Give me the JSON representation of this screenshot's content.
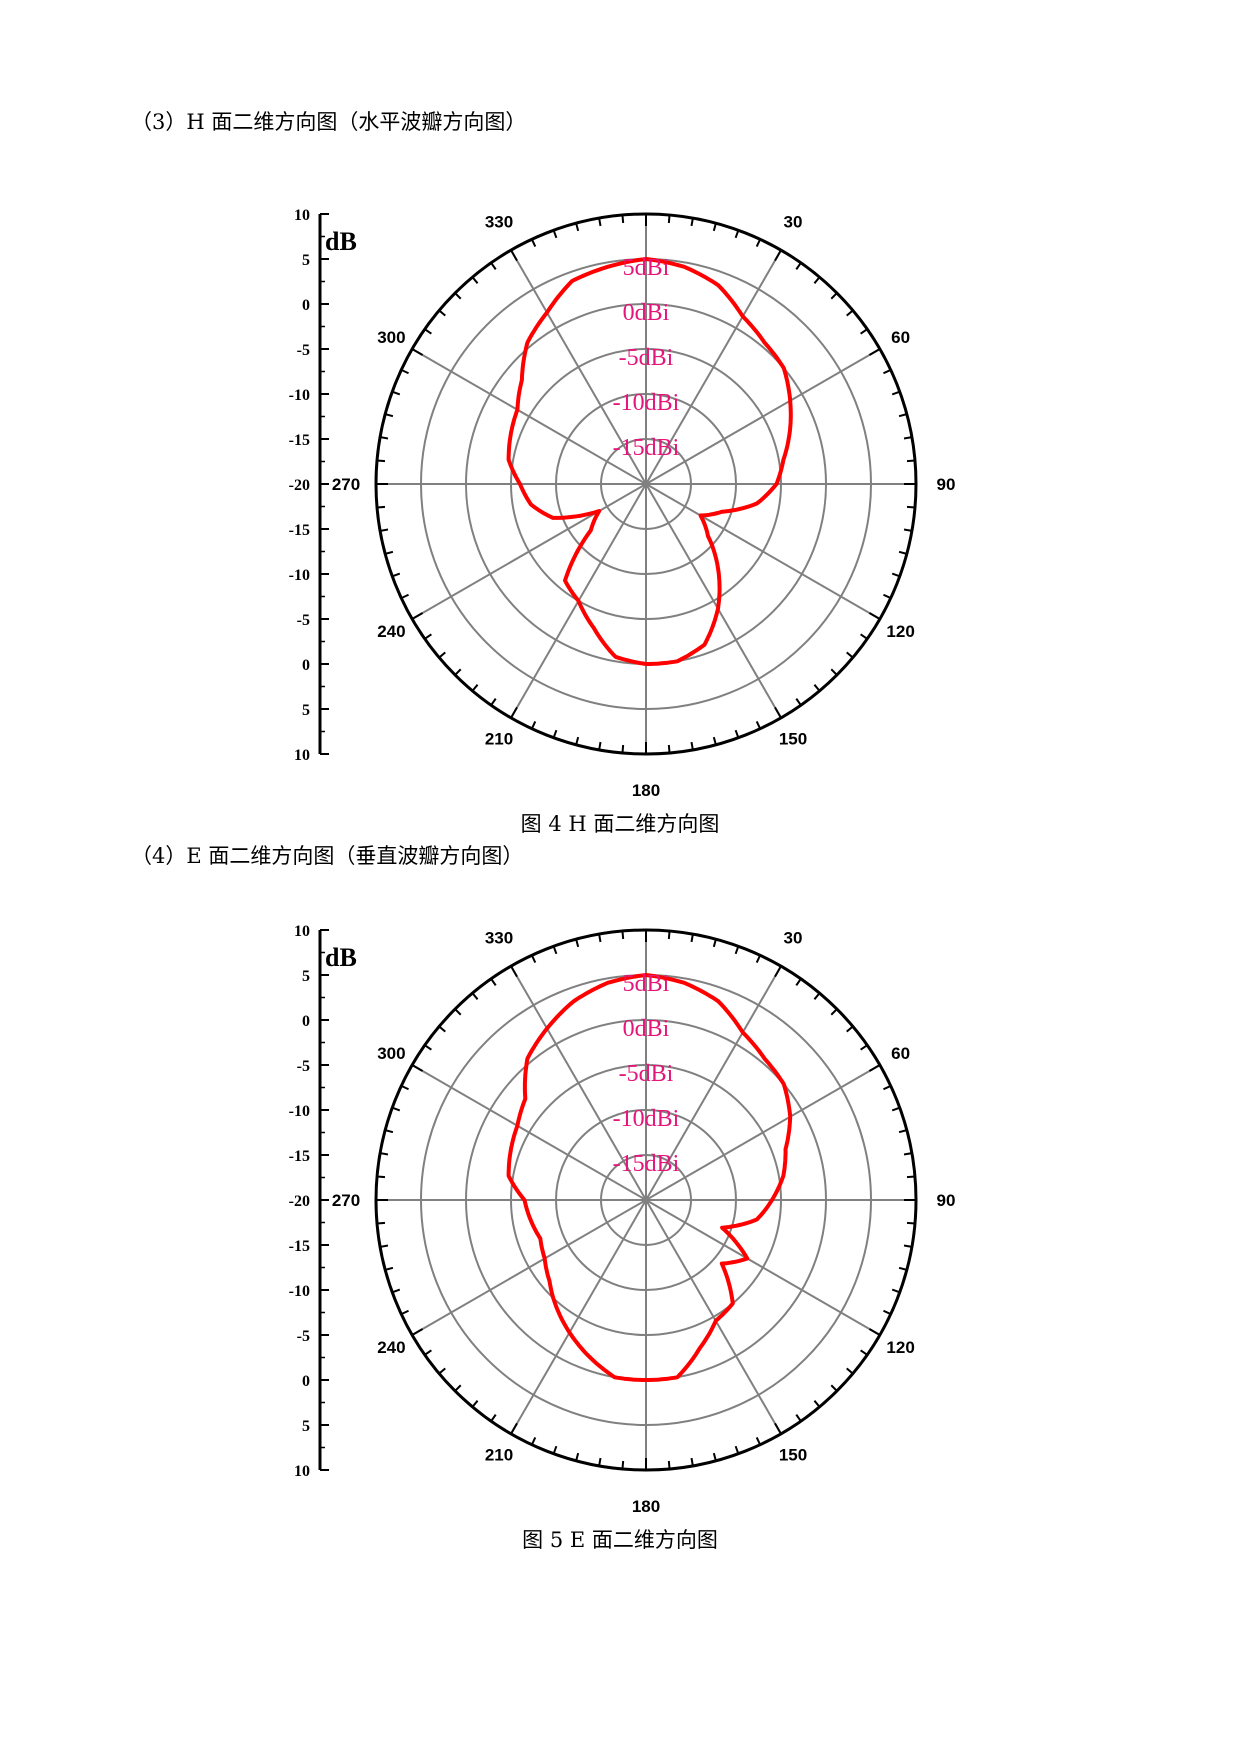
{
  "sections": [
    {
      "heading": "（3）H 面二维方向图（水平波瓣方向图）",
      "caption": "图 4 H 面二维方向图",
      "chart_data": {
        "type": "polar",
        "unit_label": "dB",
        "scale_tick_labels": [
          "10",
          "5",
          "0",
          "-5",
          "-10",
          "-15",
          "-20",
          "-15",
          "-10",
          "-5",
          "0",
          "5",
          "10"
        ],
        "radial_range_dbi": [
          -20,
          10
        ],
        "ring_labels": [
          "5dBi",
          "0dBi",
          "-5dBi",
          "-10dBi",
          "-15dBi"
        ],
        "angle_labels": [
          "330",
          "30",
          "300",
          "60",
          "270",
          "90",
          "240",
          "120",
          "210",
          "150",
          "180"
        ],
        "angular_grid_step_deg": 30,
        "grid": true,
        "series": [
          {
            "color": "#ff0000",
            "theta_deg": [
              0,
              10,
              20,
              30,
              40,
              50,
              60,
              70,
              80,
              90,
              100,
              110,
              120,
              130,
              140,
              150,
              160,
              170,
              180,
              190,
              200,
              210,
              220,
              230,
              240,
              250,
              260,
              270,
              280,
              290,
              300,
              310,
              320,
              330,
              340,
              350
            ],
            "gain_dbi": [
              5,
              4.5,
              3.5,
              1.5,
              0.5,
              0,
              -1.5,
              -3,
              -4.5,
              -5.5,
              -7.5,
              -11,
              -13,
              -11,
              -7.5,
              -4,
              -1,
              0,
              0,
              -0.5,
              -3,
              -5,
              -6,
              -12,
              -14,
              -9,
              -7,
              -6,
              -4.5,
              -4,
              -3.5,
              -2,
              0.5,
              2,
              4,
              4.5
            ]
          }
        ]
      }
    },
    {
      "heading": "（4）E 面二维方向图（垂直波瓣方向图）",
      "caption": "图 5 E 面二维方向图",
      "chart_data": {
        "type": "polar",
        "unit_label": "dB",
        "scale_tick_labels": [
          "10",
          "5",
          "0",
          "-5",
          "-10",
          "-15",
          "-20",
          "-15",
          "-10",
          "-5",
          "0",
          "5",
          "10"
        ],
        "radial_range_dbi": [
          -20,
          10
        ],
        "ring_labels": [
          "5dBi",
          "0dBi",
          "-5dBi",
          "-10dBi",
          "-15dBi"
        ],
        "angle_labels": [
          "330",
          "30",
          "300",
          "60",
          "270",
          "90",
          "240",
          "120",
          "210",
          "150",
          "180"
        ],
        "angular_grid_step_deg": 30,
        "grid": true,
        "series": [
          {
            "color": "#ff0000",
            "theta_deg": [
              0,
              10,
              20,
              30,
              40,
              50,
              60,
              70,
              80,
              90,
              100,
              110,
              120,
              130,
              140,
              150,
              160,
              170,
              180,
              190,
              200,
              210,
              220,
              230,
              240,
              250,
              260,
              270,
              280,
              290,
              300,
              310,
              320,
              330,
              340,
              350
            ],
            "gain_dbi": [
              5,
              4.5,
              3.5,
              1.5,
              0.5,
              0,
              -1.5,
              -3.5,
              -4.5,
              -6,
              -7.5,
              -11,
              -7,
              -9,
              -5,
              -4.5,
              -2.5,
              0,
              0,
              0,
              -1.5,
              -3,
              -4.5,
              -6,
              -7,
              -7.5,
              -7,
              -6.5,
              -4.5,
              -4,
              -3.5,
              -2.5,
              0.5,
              2,
              3.5,
              4.5
            ]
          }
        ]
      }
    }
  ]
}
